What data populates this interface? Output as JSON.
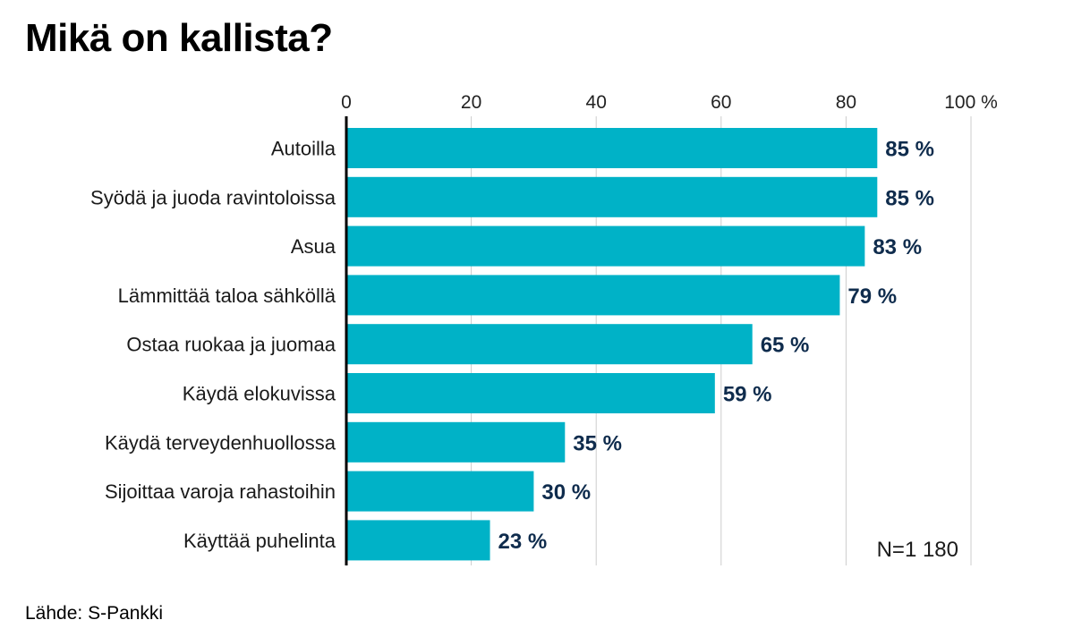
{
  "title": "Mikä on kallista?",
  "source": "Lähde: S-Pankki",
  "colors": {
    "bar": "#00b2c7",
    "value_label": "#0f2c4d",
    "gridline": "#cccccc",
    "axis": "#000000"
  },
  "chart_data": {
    "type": "bar",
    "orientation": "horizontal",
    "title": "Mikä on kallista?",
    "categories": [
      "Autoilla",
      "Syödä ja juoda ravintoloissa",
      "Asua",
      "Lämmittää taloa sähköllä",
      "Ostaa ruokaa ja juomaa",
      "Käydä elokuvissa",
      "Käydä terveydenhuollossa",
      "Sijoittaa varoja rahastoihin",
      "Käyttää puhelinta"
    ],
    "values": [
      85,
      85,
      83,
      79,
      65,
      59,
      35,
      30,
      23
    ],
    "value_labels": [
      "85 %",
      "85 %",
      "83 %",
      "79 %",
      "65 %",
      "59 %",
      "35 %",
      "30 %",
      "23 %"
    ],
    "xlim": [
      0,
      100
    ],
    "ticks": [
      0,
      20,
      40,
      60,
      80,
      100
    ],
    "tick_labels": [
      "0",
      "20",
      "40",
      "60",
      "80",
      "100 %"
    ],
    "axis_position": "top",
    "grid": true,
    "annotation": "N=1 180"
  }
}
